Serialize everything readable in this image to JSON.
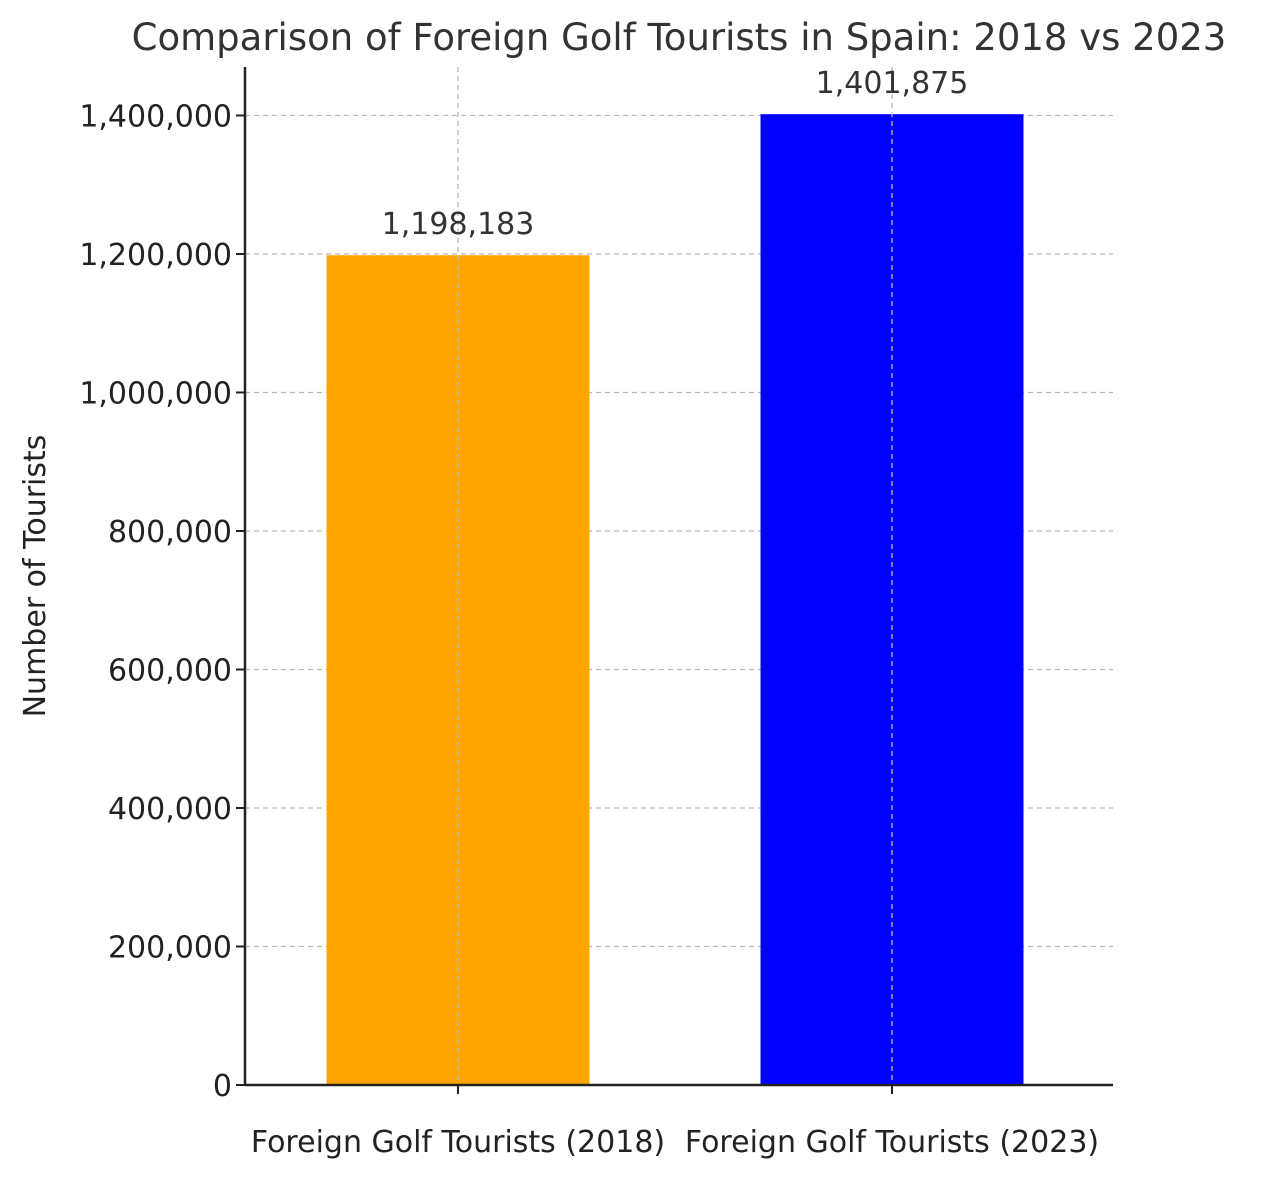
{
  "chart_data": {
    "type": "bar",
    "title": "Comparison of Foreign Golf Tourists in Spain: 2018 vs 2023",
    "xlabel": "",
    "ylabel": "Number of Tourists",
    "categories": [
      "Foreign Golf Tourists (2018)",
      "Foreign Golf Tourists (2023)"
    ],
    "values": [
      1198183,
      1401875
    ],
    "data_labels": [
      "1,198,183",
      "1,401,875"
    ],
    "colors": [
      "#FFA500",
      "#0000FF"
    ],
    "ylim": [
      0,
      1470000
    ],
    "yticks": [
      0,
      200000,
      400000,
      600000,
      800000,
      1000000,
      1200000,
      1400000
    ],
    "ytick_labels": [
      "0",
      "200,000",
      "400,000",
      "600,000",
      "800,000",
      "1,000,000",
      "1,200,000",
      "1,400,000"
    ],
    "grid": true
  }
}
